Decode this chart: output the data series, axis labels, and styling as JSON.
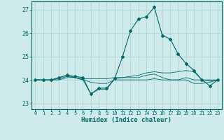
{
  "xlabel": "Humidex (Indice chaleur)",
  "ylabel": "",
  "background_color": "#ceeaea",
  "grid_color": "#aed0d0",
  "line_color": "#006868",
  "xlim": [
    -0.5,
    23.5
  ],
  "ylim": [
    22.75,
    27.35
  ],
  "yticks": [
    23,
    24,
    25,
    26,
    27
  ],
  "xticks": [
    0,
    1,
    2,
    3,
    4,
    5,
    6,
    7,
    8,
    9,
    10,
    11,
    12,
    13,
    14,
    15,
    16,
    17,
    18,
    19,
    20,
    21,
    22,
    23
  ],
  "series": [
    [
      24.0,
      24.0,
      24.0,
      24.1,
      24.2,
      24.1,
      24.0,
      23.4,
      23.6,
      23.6,
      24.05,
      24.1,
      24.15,
      24.2,
      24.3,
      24.35,
      24.3,
      24.3,
      24.35,
      24.4,
      24.35,
      24.0,
      24.0,
      24.0
    ],
    [
      24.0,
      24.0,
      24.0,
      24.0,
      24.1,
      24.1,
      24.0,
      23.9,
      23.85,
      23.85,
      24.0,
      24.0,
      24.0,
      24.0,
      24.0,
      24.05,
      24.0,
      24.0,
      24.0,
      24.0,
      23.85,
      23.85,
      23.9,
      24.0
    ],
    [
      24.0,
      24.0,
      24.0,
      24.05,
      24.15,
      24.1,
      24.05,
      24.05,
      24.05,
      24.05,
      24.1,
      24.1,
      24.1,
      24.1,
      24.2,
      24.25,
      24.1,
      24.0,
      24.0,
      24.1,
      24.0,
      24.0,
      23.95,
      24.0
    ],
    [
      24.0,
      24.0,
      24.0,
      24.1,
      24.2,
      24.15,
      24.1,
      23.4,
      23.65,
      23.65,
      24.05,
      25.0,
      26.1,
      26.6,
      26.7,
      27.1,
      25.9,
      25.75,
      25.1,
      24.7,
      24.4,
      24.0,
      23.75,
      24.0
    ]
  ]
}
